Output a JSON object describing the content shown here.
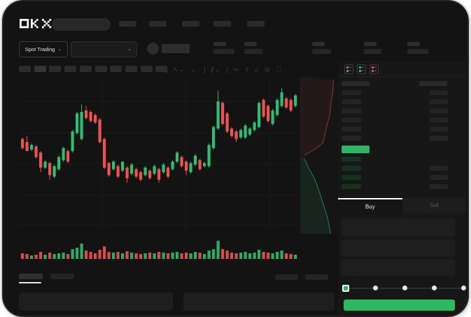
{
  "brand": "OKX",
  "header": {
    "logo": "OKX",
    "search_placeholder_bar": true,
    "nav_placeholder_count": 5
  },
  "market_bar": {
    "market_selector_label": "Spot Trading",
    "pair_dropdown_value": "",
    "ticker_stat_placeholder_count": 5
  },
  "chart_toolbar": {
    "timeframe_placeholder_count": 10,
    "icons": [
      "divider",
      "candle-style-icon",
      "chart-type-icon",
      "divider",
      "indicators-icon",
      "divider",
      "line-tool-icon",
      "compare-icon",
      "camera-icon",
      "settings-clock-icon",
      "fullscreen-icon"
    ]
  },
  "orderbook": {
    "view_icons": [
      "book-both-icon",
      "book-bids-icon",
      "book-asks-icon"
    ],
    "ask_row_count": 6,
    "bid_row_count": 4,
    "right_column_bid_bar_count": 3,
    "last_price_highlighted": true
  },
  "trade_panel": {
    "tabs": [
      {
        "label": "Buy",
        "active": true
      },
      {
        "label": "Sell",
        "active": false
      }
    ],
    "input_placeholder_count": 3,
    "slider": {
      "stops": 5,
      "selected_index": 0
    },
    "submit_button_label": ""
  },
  "bottom_bar": {
    "tab_placeholder_count": 2,
    "active_tab_index": 0,
    "right_placeholder_count": 2,
    "panel_count": 2
  },
  "colors": {
    "screen_bg": "#131313",
    "panel_bg": "#171717",
    "skeleton": "#2b2b2b",
    "candle_up": "#2ebd72",
    "candle_down": "#ef5350",
    "last_price_green": "#2bb566",
    "buy_button_green": "#2cb95f",
    "depth_ask_line": "#7e3b37",
    "depth_bid_line": "#2b7a57",
    "tab_active_indicator": "#ffffff"
  },
  "chart_data": {
    "type": "candlestick",
    "note": "No axis tick labels or numeric price labels are visible in the screenshot; values are relative price units 0-100 estimated from candle geometry.",
    "price_range": [
      0,
      100
    ],
    "grid": true,
    "candles": [
      [
        62,
        63,
        55,
        56
      ],
      [
        60,
        64,
        54,
        54
      ],
      [
        55,
        59,
        54,
        58
      ],
      [
        57,
        58,
        49,
        50
      ],
      [
        53,
        54,
        40,
        43
      ],
      [
        43,
        48,
        42,
        47
      ],
      [
        46,
        47,
        35,
        38
      ],
      [
        37,
        45,
        36,
        44
      ],
      [
        42,
        51,
        41,
        50
      ],
      [
        48,
        57,
        47,
        56
      ],
      [
        54,
        55,
        46,
        47
      ],
      [
        54,
        68,
        53,
        67
      ],
      [
        66,
        80,
        65,
        79
      ],
      [
        62,
        85,
        61,
        80
      ],
      [
        81,
        84,
        75,
        76
      ],
      [
        80,
        81,
        73,
        74
      ],
      [
        78,
        79,
        72,
        73
      ],
      [
        75,
        76,
        59,
        60
      ],
      [
        62,
        63,
        42,
        43
      ],
      [
        46,
        47,
        37,
        38
      ],
      [
        42,
        48,
        41,
        47
      ],
      [
        44,
        45,
        36,
        37
      ],
      [
        41,
        47,
        40,
        47
      ],
      [
        43,
        44,
        33,
        36
      ],
      [
        39,
        46,
        38,
        45
      ],
      [
        42,
        43,
        36,
        37
      ],
      [
        40,
        41,
        34,
        35
      ],
      [
        38,
        44,
        37,
        43
      ],
      [
        41,
        42,
        35,
        36
      ],
      [
        39,
        45,
        38,
        44
      ],
      [
        42,
        43,
        33,
        35
      ],
      [
        40,
        46,
        39,
        45
      ],
      [
        43,
        44,
        36,
        37
      ],
      [
        42,
        48,
        41,
        47
      ],
      [
        47,
        54,
        46,
        53
      ],
      [
        50,
        51,
        43,
        44
      ],
      [
        47,
        48,
        38,
        41
      ],
      [
        40,
        47,
        39,
        46
      ],
      [
        45,
        52,
        44,
        51
      ],
      [
        48,
        49,
        41,
        42
      ],
      [
        44,
        47,
        43,
        46
      ],
      [
        44,
        59,
        43,
        58
      ],
      [
        56,
        71,
        55,
        70
      ],
      [
        69,
        94,
        68,
        87
      ],
      [
        86,
        87,
        71,
        72
      ],
      [
        79,
        80,
        66,
        67
      ],
      [
        69,
        70,
        63,
        64
      ],
      [
        67,
        68,
        60,
        62
      ],
      [
        63,
        69,
        62,
        68
      ],
      [
        63,
        72,
        62,
        71
      ],
      [
        65,
        70,
        64,
        69
      ],
      [
        68,
        74,
        67,
        73
      ],
      [
        70,
        87,
        69,
        86
      ],
      [
        88,
        89,
        76,
        77
      ],
      [
        84,
        85,
        73,
        74
      ],
      [
        72,
        82,
        71,
        81
      ],
      [
        78,
        89,
        77,
        88
      ],
      [
        84,
        96,
        83,
        93
      ],
      [
        89,
        90,
        82,
        83
      ],
      [
        88,
        89,
        80,
        81
      ],
      [
        84,
        92,
        83,
        91
      ]
    ],
    "volume": [
      8,
      7,
      5,
      6,
      10,
      6,
      9,
      7,
      8,
      9,
      7,
      14,
      16,
      22,
      12,
      10,
      8,
      13,
      18,
      10,
      9,
      10,
      8,
      11,
      9,
      8,
      7,
      8,
      9,
      8,
      10,
      9,
      8,
      9,
      10,
      8,
      9,
      8,
      10,
      9,
      7,
      12,
      14,
      26,
      14,
      12,
      9,
      8,
      9,
      10,
      8,
      9,
      13,
      10,
      9,
      8,
      10,
      12,
      8,
      7,
      6
    ],
    "depth": {
      "asks_line_pct": [
        [
          88,
          2
        ],
        [
          86,
          10
        ],
        [
          82,
          16
        ],
        [
          78,
          24
        ],
        [
          72,
          30
        ],
        [
          66,
          36
        ],
        [
          60,
          42
        ],
        [
          40,
          46
        ],
        [
          10,
          50
        ]
      ],
      "bids_line_pct": [
        [
          10,
          52
        ],
        [
          22,
          58
        ],
        [
          36,
          64
        ],
        [
          46,
          70
        ],
        [
          54,
          76
        ],
        [
          62,
          82
        ],
        [
          70,
          88
        ],
        [
          76,
          94
        ],
        [
          80,
          100
        ]
      ]
    }
  }
}
